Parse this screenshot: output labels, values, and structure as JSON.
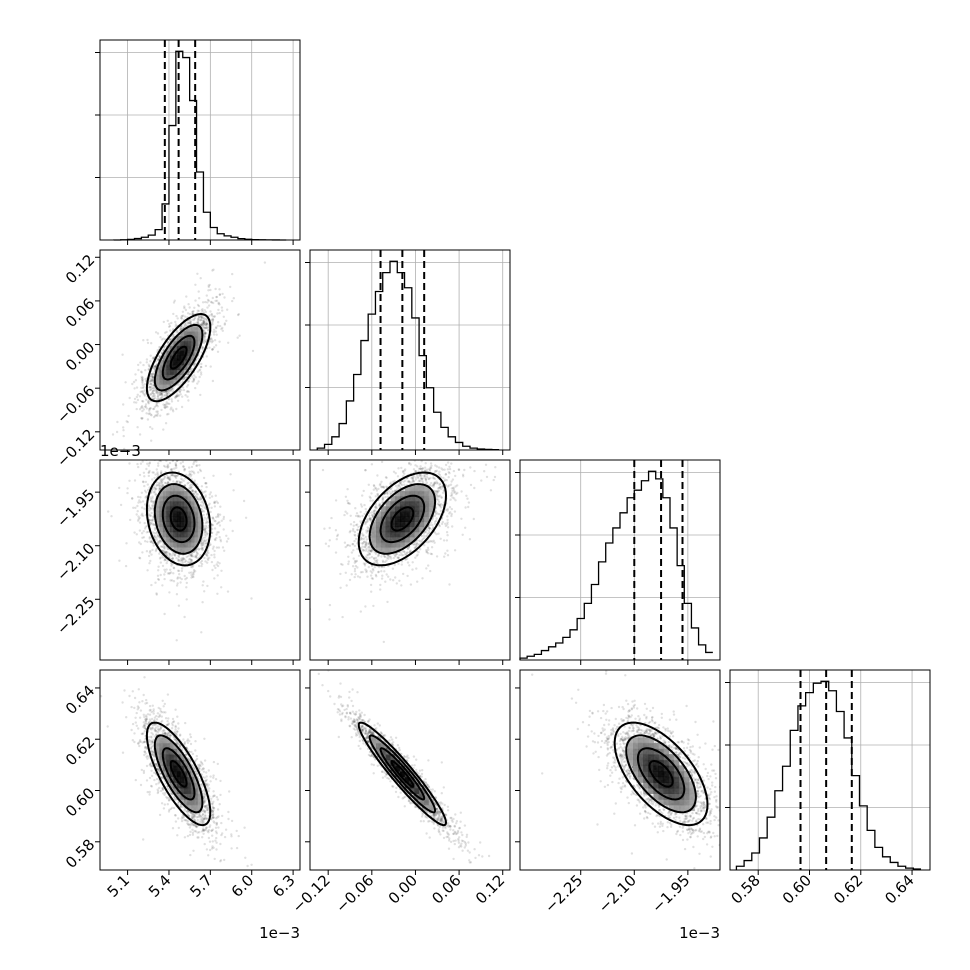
{
  "chart_data": {
    "type": "scatter",
    "title": "",
    "description": "Corner plot of 4 parameters: 1D marginal histograms on the diagonal, 2D scatter + density contours below the diagonal.",
    "parameters": [
      {
        "name": "",
        "axis_range": [
          4.9,
          6.35
        ],
        "offset_label": "1e−3",
        "ticks": [
          5.1,
          5.4,
          5.7,
          6.0,
          6.3
        ],
        "tick_labels": [
          "5.1",
          "5.4",
          "5.7",
          "6.0",
          "6.3"
        ],
        "median": 5.47,
        "q16": 5.37,
        "q84": 5.59,
        "sigma": 0.115
      },
      {
        "name": "",
        "axis_range": [
          -0.145,
          0.13
        ],
        "offset_label": "",
        "ticks": [
          -0.12,
          -0.06,
          0.0,
          0.06,
          0.12
        ],
        "tick_labels": [
          "−0.12",
          "−0.06",
          "0.00",
          "0.06",
          "0.12"
        ],
        "median": -0.018,
        "q16": -0.048,
        "q84": 0.012,
        "sigma": 0.03
      },
      {
        "name": "",
        "axis_range": [
          -2.42,
          -1.86
        ],
        "offset_label": "1e−3",
        "ticks": [
          -2.25,
          -2.1,
          -1.95
        ],
        "tick_labels": [
          "−2.25",
          "−2.10",
          "−1.95"
        ],
        "median": -2.025,
        "q16": -2.1,
        "q84": -1.965,
        "sigma": 0.065
      },
      {
        "name": "",
        "axis_range": [
          0.569,
          0.647
        ],
        "offset_label": "",
        "ticks": [
          0.58,
          0.6,
          0.62,
          0.64
        ],
        "tick_labels": [
          "0.58",
          "0.60",
          "0.62",
          "0.64"
        ],
        "median": 0.6065,
        "q16": 0.5965,
        "q84": 0.6165,
        "sigma": 0.01
      }
    ],
    "histograms": [
      {
        "parameter": 0,
        "bin_edges": [
          5.0,
          5.05,
          5.1,
          5.15,
          5.2,
          5.25,
          5.3,
          5.35,
          5.4,
          5.45,
          5.5,
          5.55,
          5.6,
          5.65,
          5.7,
          5.75,
          5.8,
          5.85,
          5.9,
          5.95,
          6.0,
          6.05,
          6.1,
          6.15,
          6.2,
          6.25
        ],
        "counts": [
          0.02,
          0.4,
          0.9,
          2.1,
          4,
          7,
          15,
          52,
          165,
          272,
          263,
          201,
          98,
          40,
          18,
          9,
          6,
          4,
          2,
          1,
          0.5,
          0.3,
          0.2,
          0.1,
          0.05
        ]
      },
      {
        "parameter": 1,
        "bin_edges": [
          -0.135,
          -0.125,
          -0.115,
          -0.105,
          -0.095,
          -0.085,
          -0.075,
          -0.065,
          -0.055,
          -0.045,
          -0.035,
          -0.025,
          -0.015,
          -0.005,
          0.005,
          0.015,
          0.025,
          0.035,
          0.045,
          0.055,
          0.065,
          0.075,
          0.085,
          0.095,
          0.105,
          0.115
        ],
        "counts": [
          0.01,
          0.03,
          0.07,
          0.14,
          0.26,
          0.4,
          0.58,
          0.72,
          0.84,
          0.94,
          1.0,
          0.94,
          0.86,
          0.7,
          0.5,
          0.33,
          0.2,
          0.12,
          0.07,
          0.04,
          0.02,
          0.01,
          0.005,
          0.003,
          0.002
        ]
      },
      {
        "parameter": 2,
        "bin_edges": [
          -2.42,
          -2.4,
          -2.38,
          -2.36,
          -2.34,
          -2.32,
          -2.3,
          -2.28,
          -2.26,
          -2.24,
          -2.22,
          -2.2,
          -2.18,
          -2.16,
          -2.14,
          -2.12,
          -2.1,
          -2.08,
          -2.06,
          -2.04,
          -2.02,
          -2.0,
          -1.98,
          -1.96,
          -1.94,
          -1.92,
          -1.9,
          -1.88
        ],
        "counts": [
          0.01,
          0.02,
          0.03,
          0.05,
          0.07,
          0.09,
          0.12,
          0.16,
          0.22,
          0.3,
          0.4,
          0.52,
          0.62,
          0.7,
          0.78,
          0.86,
          0.9,
          0.95,
          1.0,
          0.96,
          0.86,
          0.7,
          0.5,
          0.3,
          0.17,
          0.08,
          0.04
        ]
      },
      {
        "parameter": 3,
        "bin_edges": [
          0.5715,
          0.5745,
          0.5775,
          0.5805,
          0.5835,
          0.5865,
          0.5895,
          0.5925,
          0.5955,
          0.5985,
          0.6015,
          0.6045,
          0.6075,
          0.6105,
          0.6135,
          0.6165,
          0.6195,
          0.6225,
          0.6255,
          0.6285,
          0.6315,
          0.6345,
          0.6375,
          0.6405,
          0.6435
        ],
        "counts": [
          0.02,
          0.05,
          0.09,
          0.17,
          0.28,
          0.42,
          0.55,
          0.74,
          0.87,
          0.94,
          0.99,
          1.0,
          0.95,
          0.84,
          0.7,
          0.5,
          0.34,
          0.21,
          0.12,
          0.07,
          0.04,
          0.02,
          0.01,
          0.005
        ]
      }
    ],
    "correlations": [
      {
        "x": 0,
        "y": 1,
        "rho": 0.7
      },
      {
        "x": 0,
        "y": 2,
        "rho": -0.2
      },
      {
        "x": 1,
        "y": 2,
        "rho": 0.5
      },
      {
        "x": 0,
        "y": 3,
        "rho": -0.75
      },
      {
        "x": 1,
        "y": 3,
        "rho": -0.95
      },
      {
        "x": 2,
        "y": 3,
        "rho": -0.6
      }
    ],
    "contour_levels": [
      0.5,
      1.0,
      1.5,
      2.0
    ],
    "grid": true
  }
}
